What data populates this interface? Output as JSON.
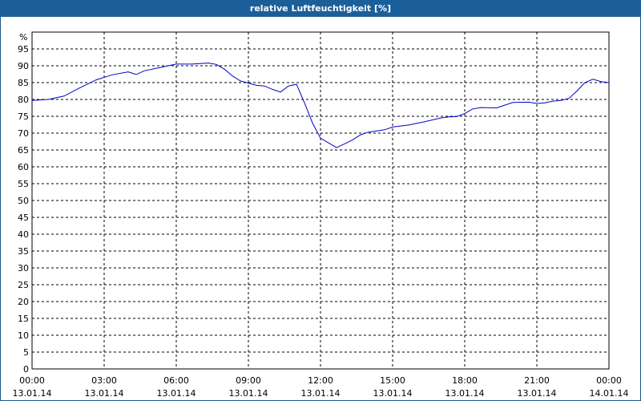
{
  "window": {
    "title": "relative Luftfeuchtigkeit [%]"
  },
  "chart_data": {
    "type": "line",
    "title": "relative Luftfeuchtigkeit [%]",
    "ylabel": "%",
    "xlabel": "",
    "ylim": [
      0,
      100
    ],
    "yticks": [
      0,
      5,
      10,
      15,
      20,
      25,
      30,
      35,
      40,
      45,
      50,
      55,
      60,
      65,
      70,
      75,
      80,
      85,
      90,
      95
    ],
    "xlim": [
      "13.01.14 00:00",
      "14.01.14 00:00"
    ],
    "xticks": [
      {
        "time": "00:00",
        "date": "13.01.14"
      },
      {
        "time": "03:00",
        "date": "13.01.14"
      },
      {
        "time": "06:00",
        "date": "13.01.14"
      },
      {
        "time": "09:00",
        "date": "13.01.14"
      },
      {
        "time": "12:00",
        "date": "13.01.14"
      },
      {
        "time": "15:00",
        "date": "13.01.14"
      },
      {
        "time": "18:00",
        "date": "13.01.14"
      },
      {
        "time": "21:00",
        "date": "13.01.14"
      },
      {
        "time": "00:00",
        "date": "14.01.14"
      }
    ],
    "grid": true,
    "line_color": "#0000cc",
    "series": [
      {
        "x": [
          "00:00",
          "00:40",
          "01:20",
          "02:00",
          "02:40",
          "03:20",
          "04:00",
          "04:20",
          "04:40",
          "05:20",
          "06:00",
          "06:40",
          "07:20",
          "07:40",
          "08:00",
          "08:20",
          "08:40",
          "09:20",
          "09:40",
          "10:00",
          "10:20",
          "10:40",
          "11:00",
          "11:20",
          "11:40",
          "12:00",
          "12:40",
          "13:00",
          "13:20",
          "13:40",
          "14:00",
          "14:40",
          "15:00",
          "15:40",
          "16:20",
          "17:00",
          "17:20",
          "17:40",
          "18:00",
          "18:20",
          "18:40",
          "19:20",
          "19:40",
          "20:00",
          "20:40",
          "21:00",
          "21:20",
          "21:40",
          "22:00",
          "22:20",
          "22:40",
          "23:00",
          "23:20",
          "23:40",
          "00:00"
        ],
        "values": [
          79.7,
          80,
          81,
          83.5,
          85.8,
          87.3,
          88.2,
          87.4,
          88.5,
          89.5,
          90.5,
          90.5,
          90.8,
          90.4,
          89,
          87,
          85.5,
          84.2,
          84,
          83,
          82.2,
          84,
          84.5,
          79,
          73,
          68.5,
          65.7,
          66.8,
          68,
          69.5,
          70.3,
          71,
          71.8,
          72.4,
          73.4,
          74.5,
          74.8,
          74.9,
          75.8,
          77.2,
          77.6,
          77.5,
          78.3,
          79.1,
          79.2,
          78.8,
          79,
          79.5,
          79.7,
          80.3,
          82.5,
          85,
          86,
          85.3,
          85
        ]
      }
    ]
  }
}
